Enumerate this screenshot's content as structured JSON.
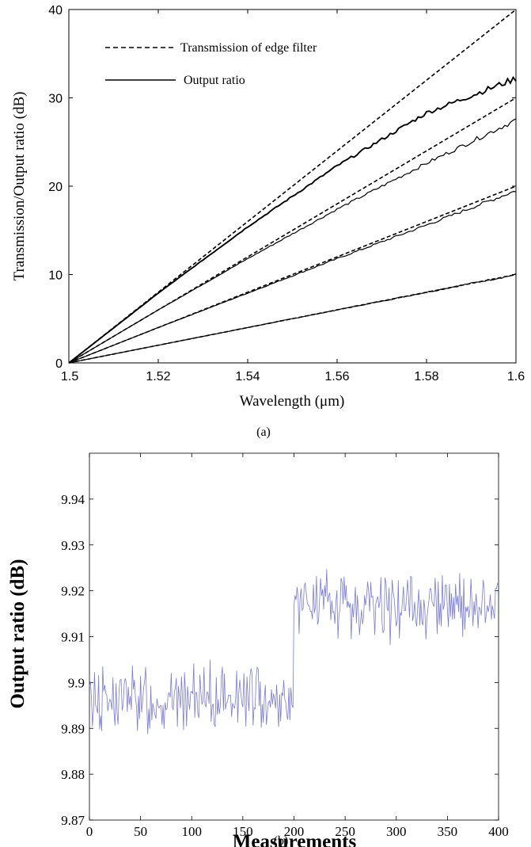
{
  "chart_data": [
    {
      "type": "line",
      "caption": "(a)",
      "xlabel": "Wavelength (μm)",
      "ylabel": "Transmission/Output ratio (dB)",
      "xlim": [
        1.5,
        1.6
      ],
      "ylim": [
        0,
        40
      ],
      "xticks": [
        "1.5",
        "1.52",
        "1.54",
        "1.56",
        "1.58",
        "1.6"
      ],
      "yticks": [
        "0",
        "10",
        "20",
        "30",
        "40"
      ],
      "legend": [
        {
          "label": "Transmission of edge filter",
          "style": "dashed"
        },
        {
          "label": "Output ratio",
          "style": "solid"
        }
      ],
      "legend_position": "top-left",
      "series": [
        {
          "name": "Transmission of edge filter",
          "style": "dashed",
          "x": [
            1.5,
            1.6
          ],
          "y": [
            0,
            10
          ]
        },
        {
          "name": "Transmission of edge filter",
          "style": "dashed",
          "x": [
            1.5,
            1.6
          ],
          "y": [
            0,
            20
          ]
        },
        {
          "name": "Transmission of edge filter",
          "style": "dashed",
          "x": [
            1.5,
            1.6
          ],
          "y": [
            0,
            30
          ]
        },
        {
          "name": "Transmission of edge filter",
          "style": "dashed",
          "x": [
            1.5,
            1.6
          ],
          "y": [
            0,
            40
          ]
        },
        {
          "name": "Output ratio",
          "style": "solid",
          "x": [
            1.5,
            1.52,
            1.54,
            1.56,
            1.58,
            1.6
          ],
          "y": [
            0,
            2,
            4,
            6,
            8,
            10
          ]
        },
        {
          "name": "Output ratio",
          "style": "solid",
          "x": [
            1.5,
            1.52,
            1.54,
            1.56,
            1.58,
            1.6
          ],
          "y": [
            0,
            4,
            7.9,
            11.8,
            15.6,
            19.5
          ]
        },
        {
          "name": "Output ratio",
          "style": "solid",
          "x": [
            1.5,
            1.52,
            1.54,
            1.56,
            1.58,
            1.6
          ],
          "y": [
            0,
            6,
            11.8,
            17.4,
            22.6,
            27.5
          ]
        },
        {
          "name": "Output ratio",
          "style": "solid",
          "x": [
            1.5,
            1.52,
            1.54,
            1.56,
            1.58,
            1.6
          ],
          "y": [
            0,
            7.9,
            15.4,
            22.3,
            28.3,
            32.2
          ]
        }
      ]
    },
    {
      "type": "line",
      "caption": "(b)",
      "xlabel": "Measurements",
      "ylabel": "Output ratio (dB)",
      "xlim": [
        0,
        400
      ],
      "ylim": [
        9.87,
        9.95
      ],
      "xticks": [
        "0",
        "50",
        "100",
        "150",
        "200",
        "250",
        "300",
        "350",
        "400"
      ],
      "yticks": [
        "9.87",
        "9.88",
        "9.89",
        "9.9",
        "9.91",
        "9.92",
        "9.93",
        "9.94"
      ],
      "series": [
        {
          "color": "#7b7bd6",
          "segments": [
            {
              "x_start": 0,
              "x_end": 200,
              "mean": 9.8965,
              "range": [
                9.888,
                9.9055
              ]
            },
            {
              "x_start": 200,
              "x_end": 400,
              "mean": 9.9165,
              "range": [
                9.9075,
                9.9252
              ]
            }
          ]
        }
      ]
    }
  ]
}
